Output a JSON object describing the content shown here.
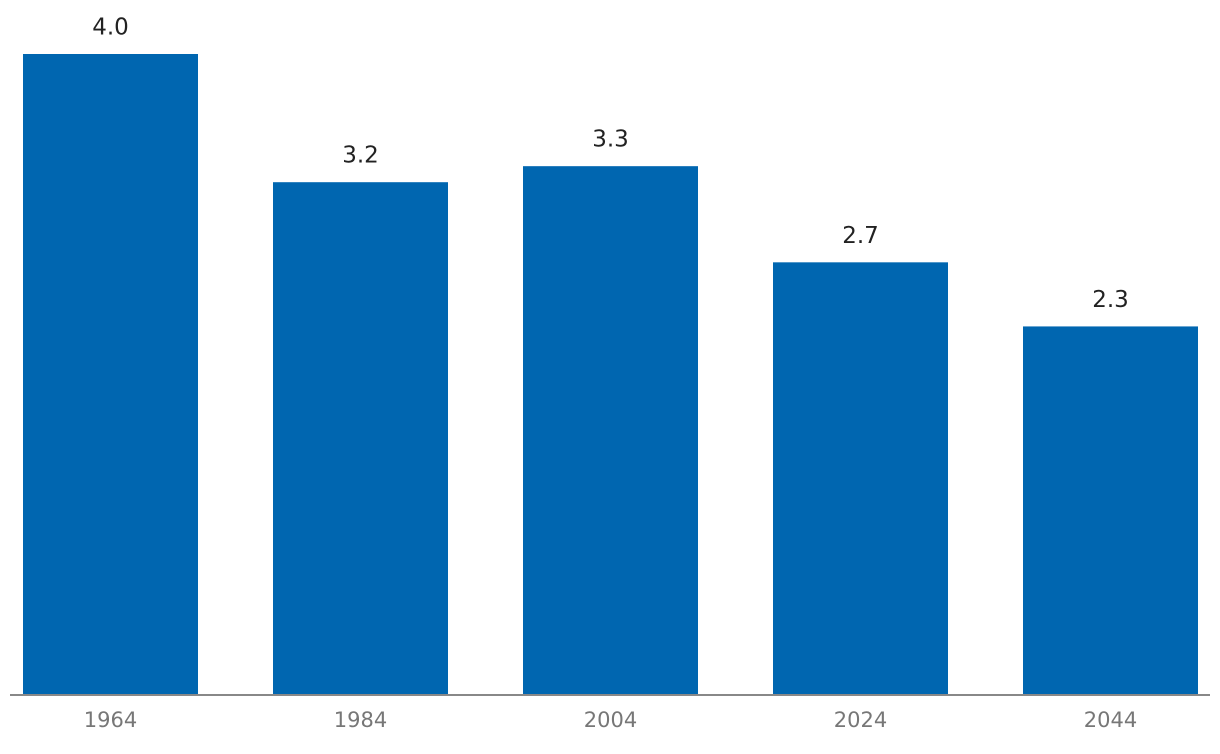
{
  "chart_data": {
    "type": "bar",
    "categories": [
      "1964",
      "1984",
      "2004",
      "2024",
      "2044"
    ],
    "values": [
      4,
      3.2,
      3.3,
      2.7,
      2.3
    ],
    "value_labels": [
      "4.0",
      "3.2",
      "3.3",
      "2.7",
      "2.3"
    ],
    "color": "#0066b0",
    "ylim": [
      0,
      4
    ]
  }
}
